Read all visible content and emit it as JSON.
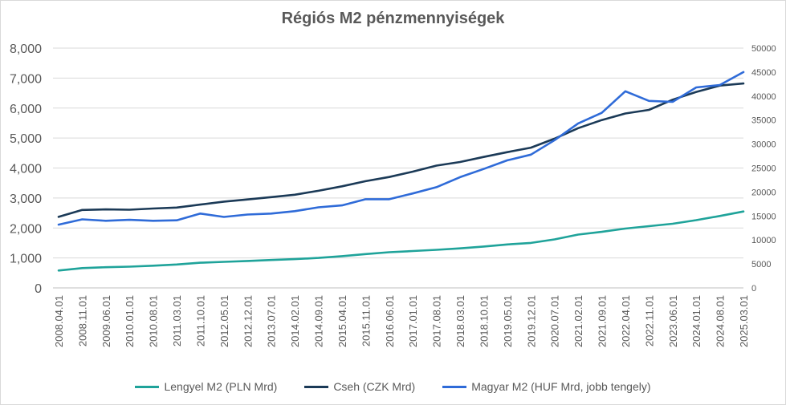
{
  "chart_data": {
    "type": "line",
    "title": "Régiós M2 pénzmennyiségek",
    "y_left": {
      "min": 0,
      "max": 8000,
      "ticks": [
        "0",
        "1,000",
        "2,000",
        "3,000",
        "4,000",
        "5,000",
        "6,000",
        "7,000",
        "8,000"
      ]
    },
    "y_right": {
      "min": 0,
      "max": 50000,
      "ticks": [
        "0",
        "5000",
        "10000",
        "15000",
        "20000",
        "25000",
        "30000",
        "35000",
        "40000",
        "45000",
        "50000"
      ]
    },
    "x_ticks": [
      "2008.04.01",
      "2008.11.01",
      "2009.06.01",
      "2010.01.01",
      "2010.08.01",
      "2011.03.01",
      "2011.10.01",
      "2012.05.01",
      "2012.12.01",
      "2013.07.01",
      "2014.02.01",
      "2014.09.01",
      "2015.04.01",
      "2015.11.01",
      "2016.06.01",
      "2017.01.01",
      "2017.08.01",
      "2018.03.01",
      "2018.10.01",
      "2019.05.01",
      "2019.12.01",
      "2020.07.01",
      "2021.02.01",
      "2021.09.01",
      "2022.04.01",
      "2022.11.01",
      "2023.06.01",
      "2024.01.01",
      "2024.08.01",
      "2025.03.01"
    ],
    "grid": true,
    "legend": "bottom",
    "series": [
      {
        "name": "Lengyel M2 (PLN Mrd)",
        "axis": "left",
        "color": "#1fa39a",
        "values": [
          580,
          660,
          690,
          710,
          740,
          780,
          840,
          870,
          900,
          930,
          960,
          1000,
          1060,
          1130,
          1190,
          1230,
          1270,
          1320,
          1380,
          1450,
          1500,
          1620,
          1780,
          1870,
          1980,
          2060,
          2140,
          2260,
          2400,
          2550
        ]
      },
      {
        "name": "Cseh (CZK Mrd)",
        "axis": "left",
        "color": "#1b3a57",
        "values": [
          2370,
          2600,
          2620,
          2610,
          2650,
          2680,
          2780,
          2880,
          2950,
          3030,
          3110,
          3240,
          3390,
          3560,
          3700,
          3880,
          4080,
          4200,
          4370,
          4530,
          4680,
          4980,
          5330,
          5600,
          5820,
          5940,
          6280,
          6540,
          6750,
          6820
        ]
      },
      {
        "name": "Magyar M2 (HUF Mrd, jobb tengely)",
        "axis": "right",
        "color": "#2f6bd8",
        "values": [
          13200,
          14300,
          14000,
          14200,
          14000,
          14100,
          15500,
          14800,
          15300,
          15500,
          16000,
          16800,
          17200,
          18500,
          18500,
          19700,
          21000,
          23100,
          24800,
          26600,
          27800,
          30800,
          34300,
          36500,
          41000,
          39000,
          38800,
          41800,
          42300,
          45000
        ]
      }
    ]
  }
}
